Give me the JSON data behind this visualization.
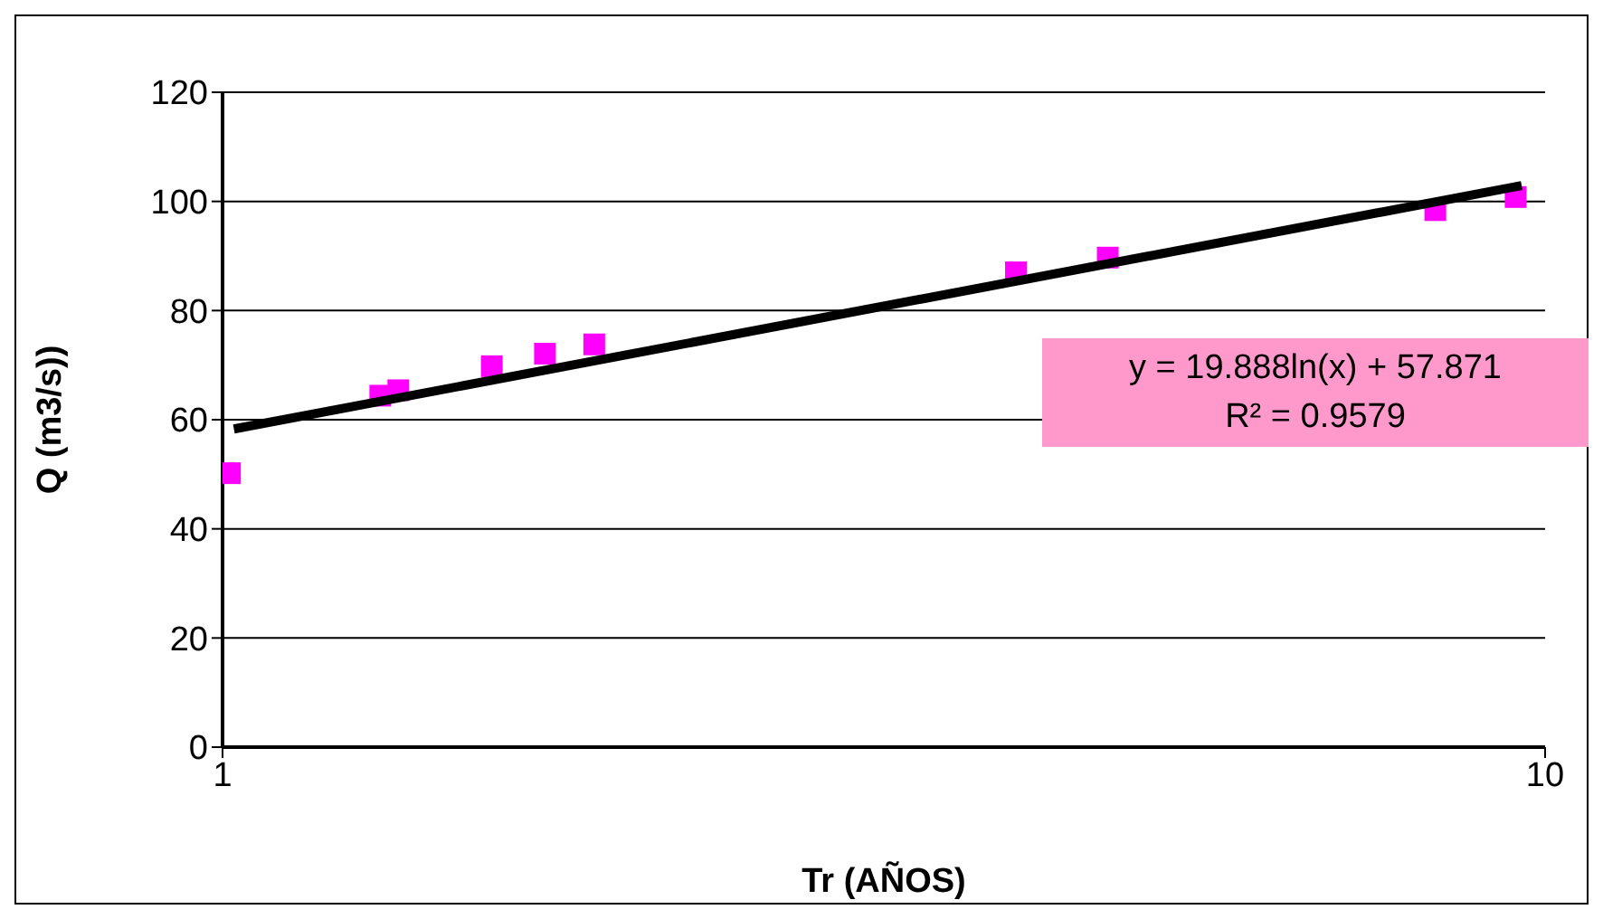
{
  "chart_data": {
    "type": "scatter",
    "xlabel": "Tr (AÑOS)",
    "ylabel": "Q (m3/s))",
    "log": "x",
    "xlim": [
      1,
      10
    ],
    "xticks": [
      1,
      10
    ],
    "ylim": [
      0,
      120
    ],
    "yticks": [
      0,
      20,
      40,
      60,
      80,
      100,
      120
    ],
    "grid": "y",
    "series": [
      {
        "marker": "square",
        "color": "#ff00ff",
        "x": [
          1.013,
          1.316,
          1.358,
          1.598,
          1.753,
          1.91,
          3.98,
          4.67,
          8.26,
          9.5
        ],
        "values": [
          50.2,
          64.4,
          65.4,
          69.8,
          72.1,
          73.8,
          87,
          89.7,
          98.4,
          100.8
        ]
      },
      {
        "type": "line",
        "marker": "none",
        "color": "#000000",
        "x": [
          1.02,
          9.6
        ],
        "values": [
          58.3,
          102.9
        ]
      }
    ],
    "annotations": [
      "y = 19.888ln(x)  + 57.871",
      "R² = 0.9579"
    ]
  }
}
